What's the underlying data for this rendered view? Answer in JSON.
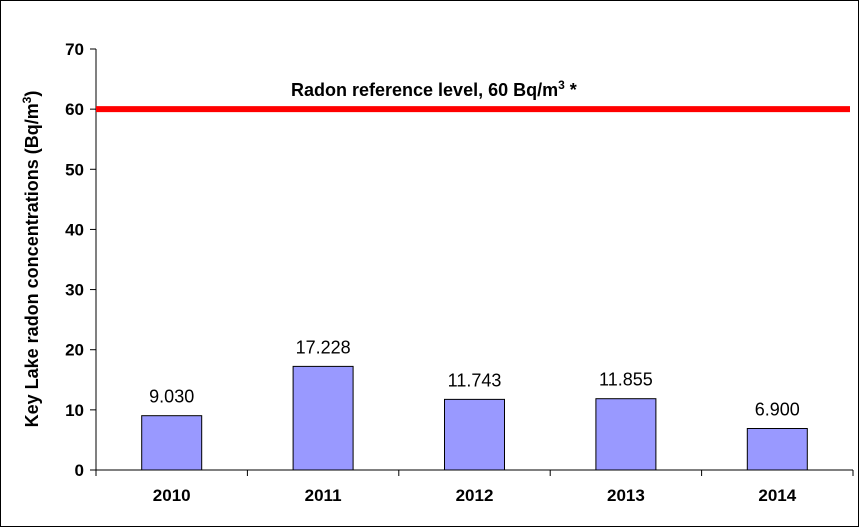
{
  "chart_data": {
    "type": "bar",
    "categories": [
      "2010",
      "2011",
      "2012",
      "2013",
      "2014"
    ],
    "values": [
      9.03,
      17.228,
      11.743,
      11.855,
      6.9
    ],
    "data_labels": [
      "9.030",
      "17.228",
      "11.743",
      "11.855",
      "6.900"
    ],
    "ylabel_main": "Key Lake radon concentrations (Bq/m",
    "ylabel_sup": "3",
    "ylabel_close": ")",
    "ylim": [
      0,
      70
    ],
    "yticks": [
      0,
      10,
      20,
      30,
      40,
      50,
      60,
      70
    ],
    "grid": false,
    "bar_color": "#9999ff",
    "reference_line": {
      "value": 60,
      "color": "#ff0000",
      "label_main": "Radon reference level, 60 Bq/m",
      "label_sup": "3",
      "label_suffix": " *"
    }
  }
}
